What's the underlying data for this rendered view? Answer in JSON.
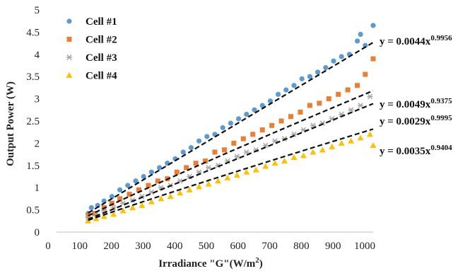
{
  "chart_data": {
    "type": "scatter",
    "title": "",
    "xlabel_main": "Irradiance \"G\"(W/m",
    "xlabel_sup": "2",
    "xlabel_end": ")",
    "ylabel": "Output Power (W)",
    "xlim": [
      0,
      1000
    ],
    "ylim": [
      0,
      5
    ],
    "xticks": [
      "0",
      "100",
      "200",
      "300",
      "400",
      "500",
      "600",
      "700",
      "800",
      "900",
      "1000"
    ],
    "yticks": [
      "0",
      "0.5",
      "1",
      "1.5",
      "2",
      "2.5",
      "3",
      "3.5",
      "4",
      "4.5",
      "5"
    ],
    "grid": false,
    "legend_position": "top-left",
    "series": [
      {
        "name": "Cell #1",
        "marker": "circle",
        "color": "#5b9bd5",
        "trend": {
          "a": 0.0044,
          "b": 0.9956,
          "coef": "y = 0.0044x",
          "exp": "0.9956"
        },
        "x": [
          100,
          110,
          130,
          150,
          175,
          200,
          225,
          250,
          275,
          300,
          325,
          350,
          375,
          400,
          425,
          450,
          475,
          500,
          525,
          550,
          575,
          600,
          625,
          650,
          675,
          700,
          725,
          750,
          775,
          800,
          825,
          850,
          875,
          900,
          925,
          950,
          960,
          975,
          1000
        ],
        "y": [
          0.42,
          0.55,
          0.6,
          0.7,
          0.8,
          0.95,
          1.05,
          1.15,
          1.25,
          1.35,
          1.45,
          1.55,
          1.65,
          1.8,
          1.9,
          2.05,
          2.15,
          2.2,
          2.35,
          2.45,
          2.55,
          2.65,
          2.75,
          2.85,
          2.95,
          3.1,
          3.2,
          3.3,
          3.45,
          3.5,
          3.6,
          3.7,
          3.85,
          3.95,
          4.0,
          4.3,
          4.45,
          4.2,
          4.65
        ]
      },
      {
        "name": "Cell #2",
        "marker": "square",
        "color": "#ed7d31",
        "trend": {
          "a": 0.0049,
          "b": 0.9375,
          "coef": "y = 0.0049x",
          "exp": "0.9375"
        },
        "x": [
          100,
          120,
          150,
          175,
          200,
          230,
          260,
          290,
          320,
          350,
          380,
          410,
          440,
          470,
          500,
          530,
          560,
          590,
          620,
          650,
          680,
          710,
          740,
          770,
          800,
          830,
          860,
          890,
          920,
          950,
          975,
          1000
        ],
        "y": [
          0.38,
          0.42,
          0.55,
          0.65,
          0.75,
          0.85,
          0.95,
          1.05,
          1.15,
          1.2,
          1.35,
          1.45,
          1.55,
          1.6,
          1.8,
          1.85,
          2.0,
          2.1,
          2.2,
          2.3,
          2.4,
          2.5,
          2.6,
          2.7,
          2.85,
          2.9,
          3.0,
          3.1,
          3.2,
          3.3,
          3.55,
          3.9
        ]
      },
      {
        "name": "Cell #3",
        "marker": "star",
        "color": "#a5a5a5",
        "trend": {
          "a": 0.0029,
          "b": 0.9995,
          "coef": "y = 0.0029x",
          "exp": "0.9995"
        },
        "x": [
          100,
          125,
          150,
          180,
          210,
          240,
          270,
          300,
          330,
          360,
          390,
          420,
          450,
          480,
          510,
          540,
          570,
          600,
          630,
          660,
          690,
          720,
          750,
          780,
          810,
          840,
          870,
          900,
          930,
          960,
          990
        ],
        "y": [
          0.32,
          0.4,
          0.48,
          0.55,
          0.65,
          0.72,
          0.8,
          0.9,
          1.0,
          1.05,
          1.15,
          1.25,
          1.35,
          1.45,
          1.5,
          1.6,
          1.7,
          1.8,
          1.85,
          1.95,
          2.05,
          2.1,
          2.2,
          2.3,
          2.4,
          2.45,
          2.55,
          2.65,
          2.75,
          2.85,
          3.05
        ]
      },
      {
        "name": "Cell #4",
        "marker": "triangle",
        "color": "#ffc000",
        "trend": {
          "a": 0.0035,
          "b": 0.9404,
          "coef": "y = 0.0035x",
          "exp": "0.9404"
        },
        "x": [
          100,
          125,
          150,
          180,
          210,
          240,
          270,
          300,
          330,
          360,
          390,
          420,
          450,
          480,
          510,
          540,
          570,
          600,
          630,
          660,
          690,
          720,
          750,
          780,
          810,
          840,
          870,
          900,
          930,
          960,
          990,
          1000
        ],
        "y": [
          0.25,
          0.3,
          0.35,
          0.4,
          0.48,
          0.55,
          0.6,
          0.68,
          0.75,
          0.8,
          0.88,
          0.95,
          1.02,
          1.08,
          1.15,
          1.22,
          1.28,
          1.35,
          1.4,
          1.48,
          1.55,
          1.6,
          1.68,
          1.72,
          1.8,
          1.85,
          1.92,
          2.0,
          2.05,
          2.12,
          2.2,
          1.95
        ]
      }
    ]
  }
}
